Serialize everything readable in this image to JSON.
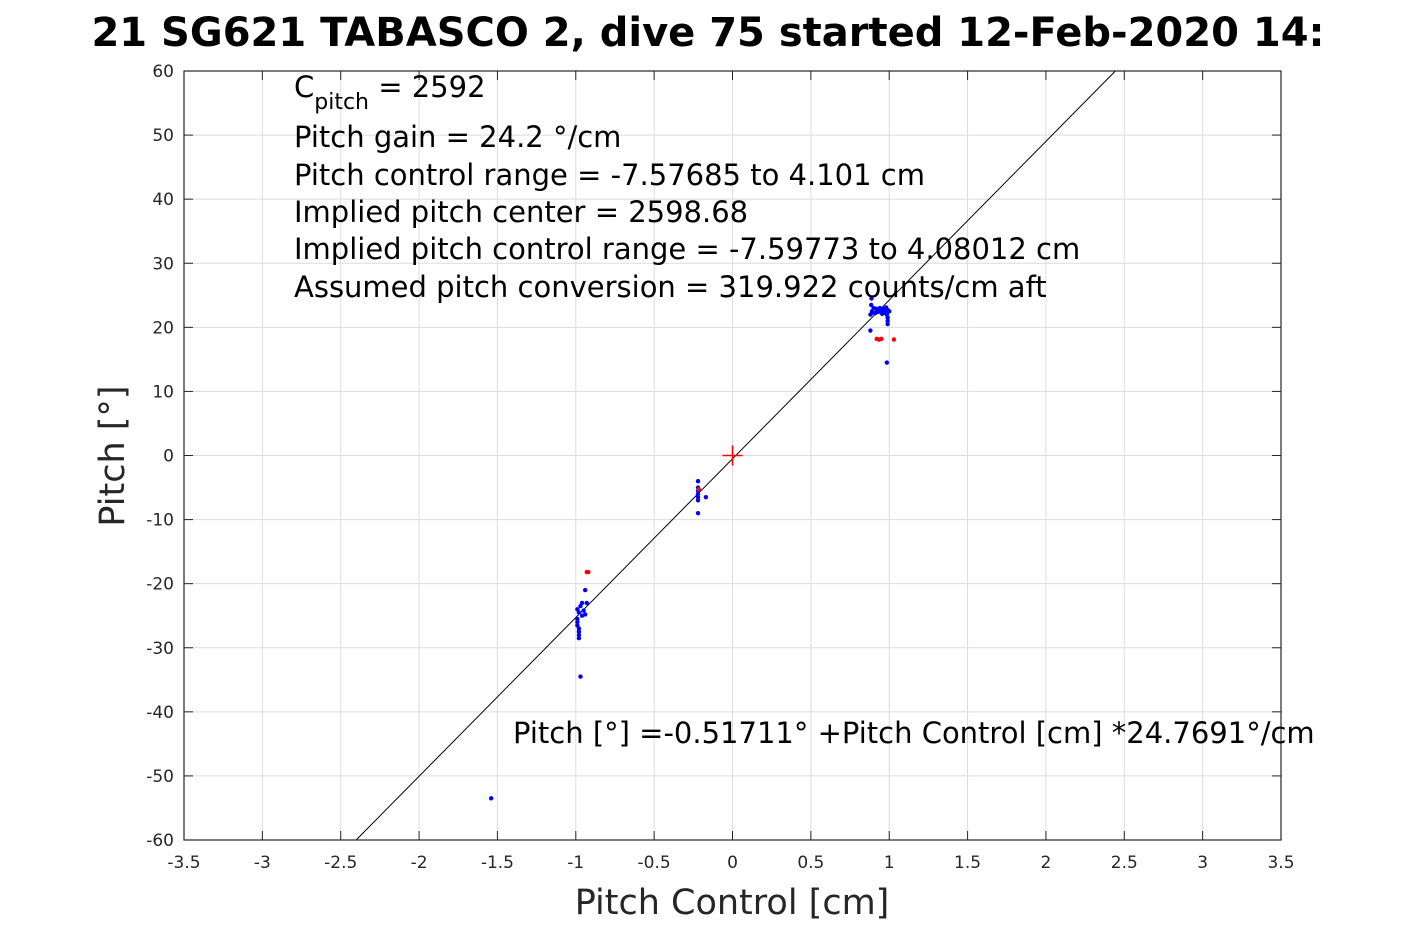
{
  "chart_data": {
    "type": "scatter",
    "title": "21 SG621 TABASCO 2, dive 75 started 12-Feb-2020 14:",
    "xlabel": "Pitch Control [cm]",
    "ylabel": "Pitch [°]",
    "xlim": [
      -3.5,
      3.5
    ],
    "ylim": [
      -60,
      60
    ],
    "x_ticks": [
      -3.5,
      -3,
      -2.5,
      -2,
      -1.5,
      -1,
      -0.5,
      0,
      0.5,
      1,
      1.5,
      2,
      2.5,
      3,
      3.5
    ],
    "x_tick_labels": [
      "-3.5",
      "-3",
      "-2.5",
      "-2",
      "-1.5",
      "-1",
      "-0.5",
      "0",
      "0.5",
      "1",
      "1.5",
      "2",
      "2.5",
      "3",
      "3.5"
    ],
    "y_ticks": [
      -60,
      -50,
      -40,
      -30,
      -20,
      -10,
      0,
      10,
      20,
      30,
      40,
      50,
      60
    ],
    "y_tick_labels": [
      "-60",
      "-50",
      "-40",
      "-30",
      "-20",
      "-10",
      "0",
      "10",
      "20",
      "30",
      "40",
      "50",
      "60"
    ],
    "grid": true,
    "annotations": {
      "c_pitch_label": "C",
      "c_pitch_sub": "pitch",
      "c_pitch_value": " = 2592",
      "lines": [
        "Pitch gain = 24.2 °/cm",
        "Pitch control range = -7.57685 to 4.101 cm",
        "Implied pitch center = 2598.68",
        "Implied pitch control range = -7.59773 to 4.08012 cm",
        "Assumed pitch conversion = 319.922 counts/cm aft"
      ],
      "fit_equation": "Pitch [°] =-0.51711° +Pitch Control [cm] *24.7691°/cm"
    },
    "fit_line": {
      "intercept": -0.51711,
      "slope": 24.7691,
      "color": "#000000"
    },
    "center_marker": {
      "x": 0,
      "y": 0,
      "color": "#ff0000"
    },
    "series": [
      {
        "color": "#0000ff",
        "points": [
          [
            0.88,
            22.0
          ],
          [
            0.89,
            22.5
          ],
          [
            0.9,
            23.0
          ],
          [
            0.91,
            22.2
          ],
          [
            0.92,
            22.8
          ],
          [
            0.93,
            22.4
          ],
          [
            0.94,
            23.0
          ],
          [
            0.95,
            22.6
          ],
          [
            0.96,
            22.9
          ],
          [
            0.97,
            22.3
          ],
          [
            0.98,
            23.1
          ],
          [
            0.99,
            22.7
          ],
          [
            1.0,
            22.5
          ],
          [
            0.885,
            23.5
          ],
          [
            0.887,
            24.5
          ],
          [
            0.99,
            21.5
          ],
          [
            0.99,
            21.0
          ],
          [
            0.99,
            20.5
          ],
          [
            0.985,
            22.0
          ],
          [
            0.975,
            22.8
          ],
          [
            0.955,
            22.1
          ],
          [
            0.935,
            22.6
          ],
          [
            0.915,
            22.9
          ],
          [
            0.895,
            22.3
          ],
          [
            0.88,
            19.5
          ],
          [
            0.985,
            14.5
          ],
          [
            -0.22,
            -4.0
          ],
          [
            -0.22,
            -5.0
          ],
          [
            -0.22,
            -5.5
          ],
          [
            -0.22,
            -6.0
          ],
          [
            -0.22,
            -6.5
          ],
          [
            -0.22,
            -7.0
          ],
          [
            -0.22,
            -9.0
          ],
          [
            -0.17,
            -6.5
          ],
          [
            -0.99,
            -24.0
          ],
          [
            -0.98,
            -24.5
          ],
          [
            -0.97,
            -23.5
          ],
          [
            -0.96,
            -25.0
          ],
          [
            -0.95,
            -24.2
          ],
          [
            -0.94,
            -24.8
          ],
          [
            -0.93,
            -23.0
          ],
          [
            -0.99,
            -25.5
          ],
          [
            -0.99,
            -26.0
          ],
          [
            -0.99,
            -26.5
          ],
          [
            -0.98,
            -27.0
          ],
          [
            -0.98,
            -27.5
          ],
          [
            -0.98,
            -28.0
          ],
          [
            -0.98,
            -28.5
          ],
          [
            -0.96,
            -23.0
          ],
          [
            -0.94,
            -21.0
          ],
          [
            -0.97,
            -34.5
          ],
          [
            -1.54,
            -53.5
          ]
        ]
      },
      {
        "color": "#ff0000",
        "points": [
          [
            0.92,
            18.2
          ],
          [
            0.935,
            18.1
          ],
          [
            0.95,
            18.2
          ],
          [
            1.03,
            18.1
          ],
          [
            -0.93,
            -18.2
          ],
          [
            -0.92,
            -18.2
          ],
          [
            -0.215,
            -5.3
          ]
        ]
      }
    ]
  }
}
